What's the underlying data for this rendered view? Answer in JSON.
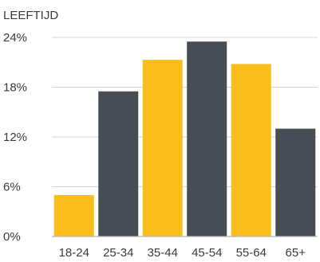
{
  "chart_data": {
    "type": "bar",
    "title": "LEEFTIJD",
    "xlabel": "",
    "ylabel": "",
    "categories": [
      "18-24",
      "25-34",
      "35-44",
      "45-54",
      "55-64",
      "65+"
    ],
    "values": [
      5.0,
      17.5,
      21.3,
      23.5,
      20.8,
      13.0
    ],
    "bar_colors": [
      "#fbbd1c",
      "#474d55",
      "#fbbd1c",
      "#474d55",
      "#fbbd1c",
      "#474d55"
    ],
    "ylim": [
      0,
      24
    ],
    "yticks": [
      0,
      6,
      12,
      18,
      24
    ],
    "ytick_labels": [
      "0%",
      "6%",
      "12%",
      "18%",
      "24%"
    ],
    "grid": true,
    "legend": "none"
  }
}
